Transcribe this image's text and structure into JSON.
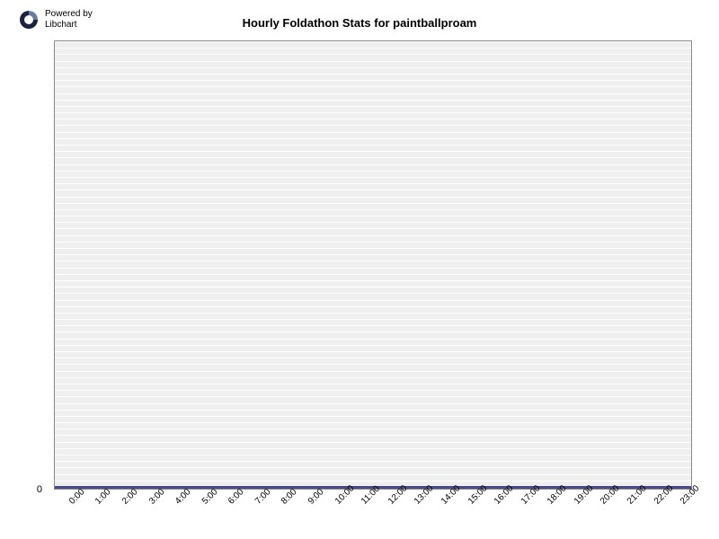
{
  "logo": {
    "powered_by_line1": "Powered by",
    "powered_by_line2": "Libchart",
    "icon_color_dark": "#1a2340",
    "icon_color_light": "#5a6a90"
  },
  "chart": {
    "type": "bar",
    "title": "Hourly Foldathon Stats for paintballproam",
    "title_fontsize": 13,
    "title_fontweight": "bold",
    "title_color": "#000000",
    "background_color": "#ffffff",
    "plot_background_color": "#efefef",
    "grid_color": "#ffffff",
    "border_color": "#888888",
    "baseline_color": "#4a4a8a",
    "baseline_width": 3,
    "gridline_count": 70,
    "y_axis": {
      "min": 0,
      "max": 0,
      "ticks": [
        0
      ],
      "label_fontsize": 11,
      "label_color": "#000000"
    },
    "x_axis": {
      "categories": [
        "0:00",
        "1:00",
        "2:00",
        "3:00",
        "4:00",
        "5:00",
        "6:00",
        "7:00",
        "8:00",
        "9:00",
        "10:00",
        "11:00",
        "12:00",
        "13:00",
        "14:00",
        "15:00",
        "16:00",
        "17:00",
        "18:00",
        "19:00",
        "20:00",
        "21:00",
        "22:00",
        "23:00"
      ],
      "label_fontsize": 10,
      "label_color": "#000000",
      "label_rotation": -45
    },
    "values": [
      0,
      0,
      0,
      0,
      0,
      0,
      0,
      0,
      0,
      0,
      0,
      0,
      0,
      0,
      0,
      0,
      0,
      0,
      0,
      0,
      0,
      0,
      0,
      0
    ],
    "bar_color": "#4a4a8a"
  }
}
